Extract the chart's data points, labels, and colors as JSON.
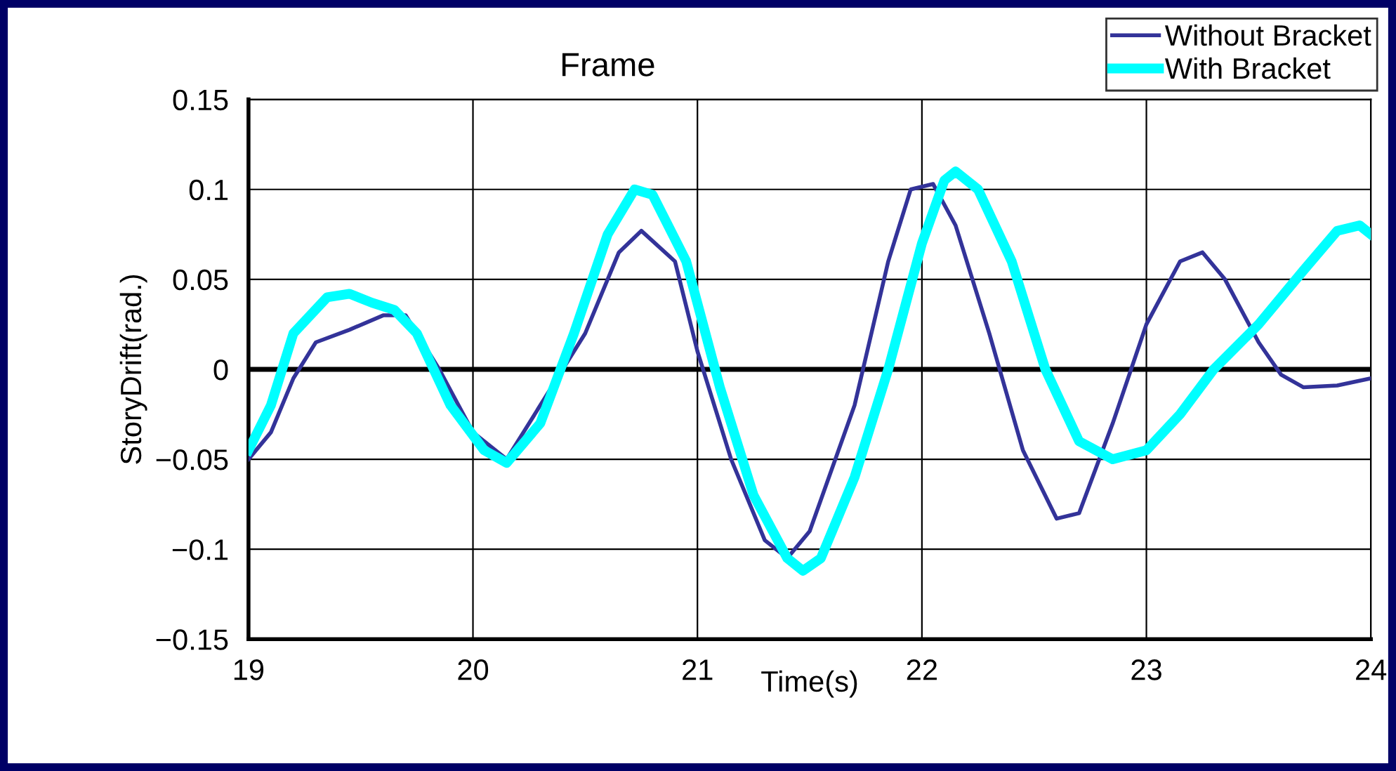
{
  "chart_data": {
    "type": "line",
    "title": "Frame",
    "xlabel": "Time(s)",
    "ylabel": "StoryDrift(rad.)",
    "xlim": [
      19,
      24
    ],
    "xticks": [
      19,
      20,
      21,
      22,
      23,
      24
    ],
    "ylim": [
      -0.15,
      0.15
    ],
    "yticks": [
      {
        "value": -0.15,
        "label": "−0.15"
      },
      {
        "value": -0.1,
        "label": "−0.1"
      },
      {
        "value": -0.05,
        "label": "−0.05"
      },
      0,
      0.05,
      0.1,
      0.15
    ],
    "grid": true,
    "legend": "top right",
    "marker": "none",
    "line_style": "solid",
    "ref_lines": [
      {
        "axis": "y",
        "value": 0,
        "color": "#000000"
      }
    ],
    "series": [
      {
        "name": "Without Bracket",
        "color": "#333399",
        "x": [
          19.0,
          19.1,
          19.2,
          19.3,
          19.45,
          19.6,
          19.7,
          19.85,
          20.0,
          20.15,
          20.5,
          20.65,
          20.75,
          20.9,
          21.0,
          21.15,
          21.3,
          21.4,
          21.5,
          21.7,
          21.85,
          21.95,
          22.05,
          22.15,
          22.3,
          22.45,
          22.6,
          22.7,
          22.85,
          23.0,
          23.15,
          23.25,
          23.35,
          23.5,
          23.6,
          23.7,
          23.85,
          24.0
        ],
        "values": [
          -0.05,
          -0.035,
          -0.005,
          0.015,
          0.022,
          0.03,
          0.03,
          0.0,
          -0.035,
          -0.05,
          0.02,
          0.065,
          0.077,
          0.06,
          0.01,
          -0.05,
          -0.095,
          -0.105,
          -0.09,
          -0.02,
          0.06,
          0.1,
          0.103,
          0.08,
          0.02,
          -0.045,
          -0.083,
          -0.08,
          -0.03,
          0.025,
          0.06,
          0.065,
          0.05,
          0.015,
          -0.003,
          -0.01,
          -0.009,
          -0.005
        ]
      },
      {
        "name": "With Bracket",
        "color": "#00ffff",
        "x": [
          19.0,
          19.1,
          19.2,
          19.35,
          19.45,
          19.55,
          19.65,
          19.75,
          19.9,
          20.05,
          20.15,
          20.3,
          20.45,
          20.6,
          20.72,
          20.8,
          20.95,
          21.1,
          21.25,
          21.4,
          21.47,
          21.55,
          21.7,
          21.85,
          22.0,
          22.1,
          22.15,
          22.25,
          22.4,
          22.55,
          22.7,
          22.85,
          23.0,
          23.15,
          23.3,
          23.5,
          23.7,
          23.85,
          23.95,
          24.0
        ],
        "values": [
          -0.045,
          -0.02,
          0.02,
          0.04,
          0.042,
          0.037,
          0.033,
          0.02,
          -0.02,
          -0.045,
          -0.052,
          -0.03,
          0.02,
          0.075,
          0.1,
          0.097,
          0.06,
          -0.01,
          -0.07,
          -0.105,
          -0.112,
          -0.105,
          -0.06,
          0.0,
          0.07,
          0.105,
          0.11,
          0.1,
          0.06,
          0.0,
          -0.04,
          -0.05,
          -0.045,
          -0.025,
          0.0,
          0.025,
          0.055,
          0.077,
          0.08,
          0.075
        ]
      }
    ]
  }
}
